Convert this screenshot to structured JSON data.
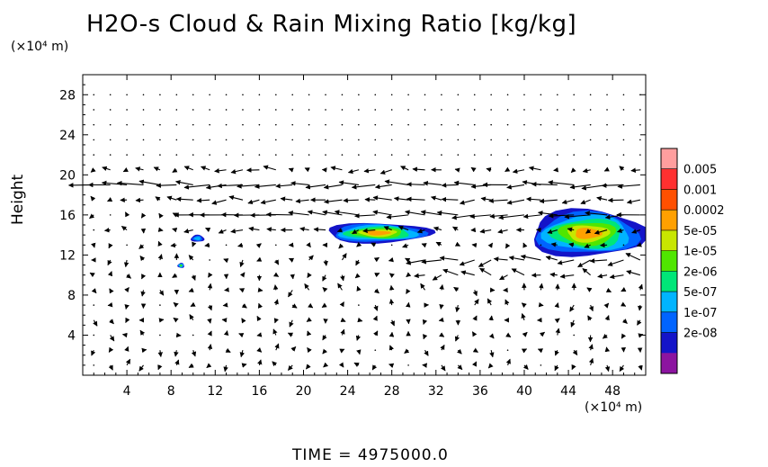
{
  "chart_data": {
    "type": "contour-vector",
    "title": "H2O-s Cloud & Rain Mixing Ratio [kg/kg]",
    "ylabel": "Height",
    "xunit": "(×10⁴ m)",
    "yunit": "(×10⁴ m)",
    "xlim": [
      0,
      51
    ],
    "ylim": [
      0,
      30
    ],
    "xticks": [
      "4",
      "8",
      "12",
      "16",
      "20",
      "24",
      "28",
      "32",
      "36",
      "40",
      "44",
      "48"
    ],
    "yticks": [
      "4",
      "8",
      "12",
      "16",
      "20",
      "24",
      "28"
    ],
    "grid": false,
    "colorbar": {
      "labels": [
        "0.005",
        "0.001",
        "0.0002",
        "5e-05",
        "1e-05",
        "2e-06",
        "5e-07",
        "1e-07",
        "2e-08"
      ],
      "colors": [
        "#ff9e9e",
        "#ff3030",
        "#ff5000",
        "#ffa000",
        "#c8e600",
        "#50e600",
        "#00e678",
        "#00b4ff",
        "#0064ff",
        "#1414c8",
        "#8c14a0"
      ]
    },
    "clouds": [
      {
        "x": [
          22.0,
          31.5
        ],
        "y": [
          13.2,
          15.2
        ],
        "max_value": "5e-05"
      },
      {
        "x": [
          40.5,
          51.0
        ],
        "y": [
          11.8,
          16.5
        ],
        "max_value": "5e-05"
      },
      {
        "x": [
          9.8,
          11.0
        ],
        "y": [
          13.3,
          14.0
        ],
        "max_value": "1e-07"
      },
      {
        "x": [
          8.6,
          9.2
        ],
        "y": [
          10.7,
          11.2
        ],
        "max_value": "2e-06"
      }
    ],
    "wind_jets": [
      {
        "y": 19.0,
        "x": [
          1,
          51
        ],
        "direction": "west"
      },
      {
        "y": 16.0,
        "x": [
          10,
          51
        ],
        "direction": "west"
      },
      {
        "y": 11.0,
        "x": [
          30,
          51
        ],
        "direction": "west"
      }
    ],
    "time_label": "TIME  =  4975000.0"
  }
}
